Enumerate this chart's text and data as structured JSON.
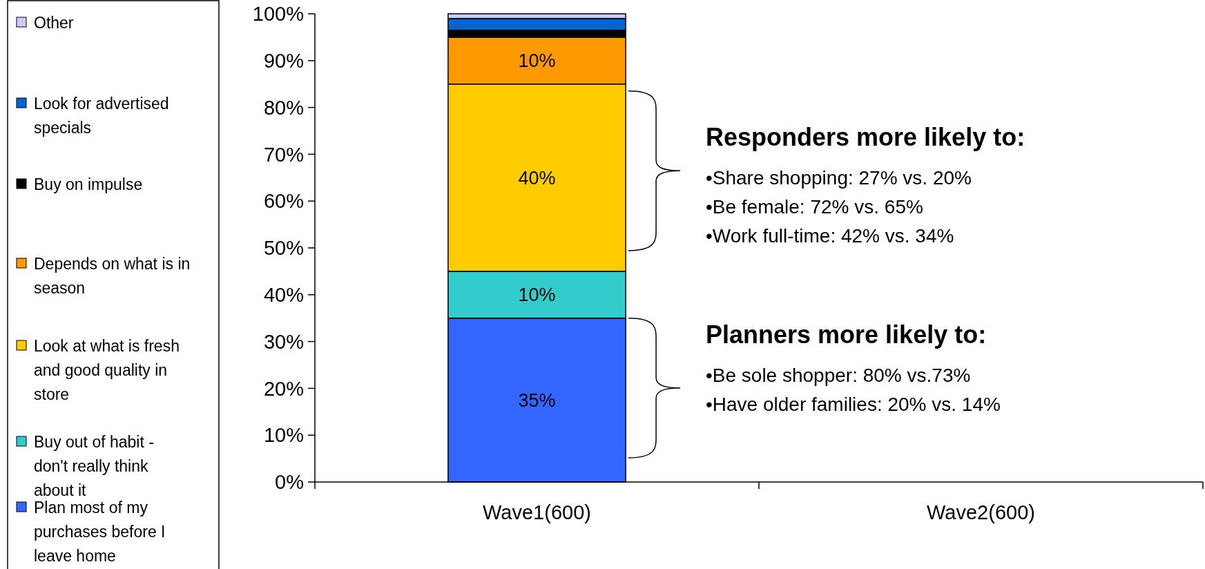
{
  "chart_data": {
    "type": "bar",
    "stacked": true,
    "categories": [
      "Wave1(600)",
      "Wave2(600)"
    ],
    "series": [
      {
        "name": "Plan most of my purchases before I leave home",
        "color": "#3366ff",
        "values": [
          35,
          null
        ],
        "value_labels": [
          "35%",
          null
        ]
      },
      {
        "name": "Buy out of habit - don't really think about it",
        "color": "#33cccc",
        "values": [
          10,
          null
        ],
        "value_labels": [
          "10%",
          null
        ]
      },
      {
        "name": "Look at what is fresh and good quality in store",
        "color": "#ffcc00",
        "values": [
          40,
          null
        ],
        "value_labels": [
          "40%",
          null
        ]
      },
      {
        "name": "Depends on what is in season",
        "color": "#ff9900",
        "values": [
          10,
          null
        ],
        "value_labels": [
          "10%",
          null
        ]
      },
      {
        "name": "Buy on impulse",
        "color": "#000000",
        "values": [
          1.5,
          null
        ],
        "value_labels": [
          null,
          null
        ]
      },
      {
        "name": "Look for advertised specials",
        "color": "#0066cc",
        "values": [
          2.5,
          null
        ],
        "value_labels": [
          null,
          null
        ]
      },
      {
        "name": "Other",
        "color": "#ccccff",
        "values": [
          1,
          null
        ],
        "value_labels": [
          null,
          null
        ]
      }
    ],
    "ylim": [
      0,
      100
    ],
    "yticks": [
      {
        "value": 0,
        "label": "0%"
      },
      {
        "value": 10,
        "label": "10%"
      },
      {
        "value": 20,
        "label": "20%"
      },
      {
        "value": 30,
        "label": "30%"
      },
      {
        "value": 40,
        "label": "40%"
      },
      {
        "value": 50,
        "label": "50%"
      },
      {
        "value": 60,
        "label": "60%"
      },
      {
        "value": 70,
        "label": "70%"
      },
      {
        "value": 80,
        "label": "80%"
      },
      {
        "value": 90,
        "label": "90%"
      },
      {
        "value": 100,
        "label": "100%"
      }
    ],
    "legend": "left",
    "grid": false,
    "annotations": [
      "Responders more likely to:",
      "•Share shopping: 27% vs. 20%",
      "•Be female: 72% vs. 65%",
      "•Work full-time: 42% vs. 34%",
      "Planners more likely to:",
      "•Be sole shopper: 80% vs.73%",
      "•Have older families: 20% vs. 14%"
    ]
  }
}
